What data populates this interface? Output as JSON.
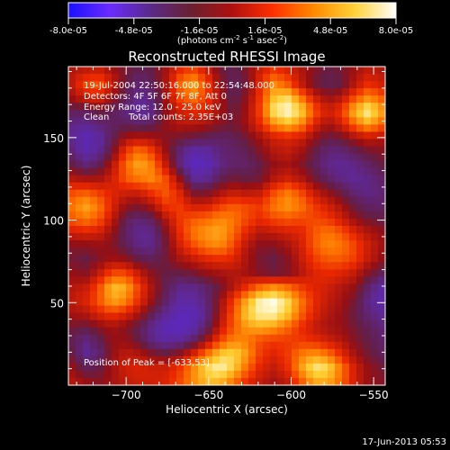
{
  "colorbar": {
    "ticks": [
      "-8.0e-05",
      "-4.8e-05",
      "-1.6e-05",
      "1.6e-05",
      "4.8e-05",
      "8.0e-05"
    ],
    "range": [
      -8e-05,
      8e-05
    ],
    "unit_main": "(photons cm",
    "unit_exp1": "-2",
    "unit_mid": " s",
    "unit_exp2": "-1",
    "unit_end": " asec",
    "unit_exp3": "-2",
    "unit_close": ")",
    "colors": [
      "#1a10ff",
      "#6a2bff",
      "#5a2a8a",
      "#6a2030",
      "#b01010",
      "#ff3000",
      "#ff8a00",
      "#ffd23a",
      "#ffffff"
    ]
  },
  "chart_data": {
    "type": "heatmap",
    "title": "Reconstructed RHESSI Image",
    "xlabel": "Heliocentric X (arcsec)",
    "ylabel": "Heliocentric Y (arcsec)",
    "xlim": [
      -735,
      -543
    ],
    "ylim": [
      0,
      193
    ],
    "x_ticks": [
      -700,
      -650,
      -600,
      -550
    ],
    "y_ticks": [
      50,
      100,
      150
    ],
    "color_scale": "RHESSI blue-purple-red-yellow-white",
    "annotations": {
      "time_range": "19-Jul-2004 22:50:16.000 to 22:54:48.000",
      "detectors": "Detectors: 4F 5F 6F 7F 8F, Att 0",
      "energy": "Energy Range: 12.0 - 25.0 keV",
      "clean_label": "Clean",
      "total_counts": "Total counts: 2.35E+03",
      "peak": "Position of Peak = [-633,53]"
    },
    "peak_position": [
      -633,
      53
    ],
    "grid_size": [
      24,
      24
    ],
    "intensity_grid": [
      [
        0.1,
        0.15,
        0.2,
        0.05,
        -0.1,
        -0.2,
        -0.15,
        0.05,
        0.3,
        0.4,
        0.2,
        -0.1,
        -0.2,
        -0.05,
        0.2,
        0.35,
        0.25,
        0.1,
        -0.05,
        -0.15,
        -0.1,
        0.05,
        0.15,
        0.1
      ],
      [
        0.15,
        0.4,
        0.45,
        0.2,
        -0.15,
        -0.3,
        -0.2,
        0.1,
        0.5,
        0.7,
        0.4,
        0.0,
        -0.25,
        -0.1,
        0.3,
        0.6,
        0.45,
        0.15,
        -0.1,
        -0.2,
        -0.15,
        0.1,
        0.3,
        0.2
      ],
      [
        0.05,
        0.2,
        0.25,
        0.0,
        -0.2,
        -0.4,
        -0.3,
        0.05,
        0.4,
        0.55,
        0.35,
        0.05,
        -0.2,
        0.0,
        0.35,
        0.75,
        0.85,
        0.55,
        0.2,
        0.0,
        0.1,
        0.4,
        0.6,
        0.45
      ],
      [
        -0.2,
        -0.2,
        -0.1,
        -0.2,
        -0.35,
        -0.45,
        -0.35,
        0.0,
        0.2,
        0.3,
        0.25,
        0.05,
        -0.15,
        0.05,
        0.4,
        0.9,
        1.0,
        0.85,
        0.45,
        0.2,
        0.35,
        0.75,
        0.95,
        0.7
      ],
      [
        -0.35,
        -0.4,
        -0.3,
        -0.25,
        -0.2,
        -0.25,
        -0.2,
        0.0,
        0.1,
        0.1,
        0.05,
        -0.05,
        -0.1,
        0.05,
        0.3,
        0.6,
        0.75,
        0.6,
        0.25,
        0.05,
        0.2,
        0.5,
        0.7,
        0.5
      ],
      [
        -0.4,
        -0.55,
        -0.45,
        -0.2,
        0.05,
        0.1,
        0.05,
        -0.05,
        -0.1,
        -0.15,
        -0.2,
        -0.25,
        -0.2,
        -0.1,
        0.05,
        0.2,
        0.25,
        0.2,
        0.0,
        -0.15,
        -0.1,
        0.05,
        0.15,
        0.1
      ],
      [
        -0.3,
        -0.5,
        -0.4,
        -0.1,
        0.35,
        0.55,
        0.35,
        0.0,
        -0.3,
        -0.5,
        -0.45,
        -0.3,
        -0.25,
        -0.2,
        -0.05,
        0.1,
        0.15,
        0.05,
        -0.15,
        -0.3,
        -0.3,
        -0.2,
        -0.1,
        -0.05
      ],
      [
        -0.15,
        -0.3,
        -0.2,
        0.1,
        0.5,
        0.7,
        0.55,
        0.15,
        -0.3,
        -0.6,
        -0.55,
        -0.35,
        -0.25,
        -0.25,
        -0.15,
        0.0,
        0.05,
        -0.05,
        -0.2,
        -0.35,
        -0.4,
        -0.35,
        -0.25,
        -0.15
      ],
      [
        0.1,
        0.05,
        0.05,
        0.2,
        0.45,
        0.55,
        0.6,
        0.4,
        0.0,
        -0.4,
        -0.4,
        -0.2,
        -0.1,
        -0.15,
        -0.1,
        0.1,
        0.2,
        0.1,
        -0.1,
        -0.25,
        -0.35,
        -0.4,
        -0.35,
        -0.25
      ],
      [
        0.4,
        0.45,
        0.35,
        0.25,
        0.2,
        0.2,
        0.35,
        0.45,
        0.25,
        -0.1,
        -0.1,
        0.05,
        0.15,
        0.1,
        0.15,
        0.4,
        0.55,
        0.4,
        0.15,
        0.0,
        -0.15,
        -0.3,
        -0.35,
        -0.3
      ],
      [
        0.55,
        0.7,
        0.55,
        0.25,
        0.0,
        -0.05,
        0.1,
        0.35,
        0.35,
        0.2,
        0.2,
        0.35,
        0.45,
        0.4,
        0.35,
        0.55,
        0.65,
        0.55,
        0.35,
        0.2,
        0.05,
        -0.15,
        -0.25,
        -0.25
      ],
      [
        0.45,
        0.55,
        0.45,
        0.15,
        -0.2,
        -0.3,
        -0.2,
        0.1,
        0.35,
        0.45,
        0.5,
        0.6,
        0.55,
        0.4,
        0.3,
        0.4,
        0.45,
        0.4,
        0.4,
        0.35,
        0.2,
        0.0,
        -0.1,
        -0.15
      ],
      [
        0.2,
        0.25,
        0.2,
        0.0,
        -0.25,
        -0.4,
        -0.35,
        -0.05,
        0.3,
        0.55,
        0.65,
        0.7,
        0.5,
        0.25,
        0.1,
        0.15,
        0.2,
        0.25,
        0.45,
        0.55,
        0.45,
        0.25,
        0.1,
        0.0
      ],
      [
        -0.05,
        -0.05,
        0.0,
        -0.05,
        -0.2,
        -0.35,
        -0.35,
        -0.1,
        0.2,
        0.4,
        0.55,
        0.6,
        0.4,
        0.1,
        -0.05,
        -0.05,
        0.05,
        0.2,
        0.45,
        0.6,
        0.55,
        0.4,
        0.2,
        0.05
      ],
      [
        -0.1,
        -0.15,
        -0.05,
        0.05,
        0.0,
        -0.15,
        -0.2,
        -0.1,
        0.05,
        0.15,
        0.25,
        0.3,
        0.25,
        0.05,
        -0.1,
        -0.15,
        -0.05,
        0.15,
        0.35,
        0.45,
        0.45,
        0.35,
        0.15,
        0.0
      ],
      [
        0.0,
        -0.05,
        0.15,
        0.4,
        0.4,
        0.15,
        -0.05,
        -0.15,
        -0.15,
        -0.1,
        0.0,
        0.05,
        0.1,
        0.05,
        -0.05,
        -0.1,
        -0.05,
        0.1,
        0.25,
        0.3,
        0.25,
        0.15,
        -0.05,
        -0.2
      ],
      [
        0.1,
        0.15,
        0.4,
        0.75,
        0.7,
        0.35,
        0.05,
        -0.2,
        -0.35,
        -0.35,
        -0.25,
        -0.1,
        0.1,
        0.3,
        0.5,
        0.6,
        0.5,
        0.35,
        0.25,
        0.2,
        0.1,
        0.0,
        -0.25,
        -0.45
      ],
      [
        0.15,
        0.25,
        0.45,
        0.7,
        0.6,
        0.3,
        0.0,
        -0.25,
        -0.45,
        -0.45,
        -0.3,
        0.0,
        0.35,
        0.7,
        0.95,
        1.0,
        0.85,
        0.55,
        0.3,
        0.15,
        0.05,
        -0.1,
        -0.35,
        -0.5
      ],
      [
        0.05,
        0.1,
        0.25,
        0.35,
        0.25,
        0.05,
        -0.2,
        -0.4,
        -0.55,
        -0.55,
        -0.35,
        0.05,
        0.45,
        0.8,
        0.95,
        0.95,
        0.8,
        0.5,
        0.25,
        0.1,
        0.0,
        -0.15,
        -0.3,
        -0.4
      ],
      [
        -0.1,
        -0.15,
        -0.05,
        0.05,
        -0.05,
        -0.2,
        -0.4,
        -0.55,
        -0.6,
        -0.5,
        -0.25,
        0.15,
        0.45,
        0.65,
        0.7,
        0.65,
        0.5,
        0.3,
        0.15,
        0.05,
        0.0,
        -0.1,
        -0.2,
        -0.3
      ],
      [
        -0.2,
        -0.35,
        -0.2,
        0.0,
        0.0,
        -0.15,
        -0.35,
        -0.45,
        -0.4,
        -0.25,
        0.05,
        0.4,
        0.6,
        0.55,
        0.4,
        0.35,
        0.35,
        0.35,
        0.3,
        0.2,
        0.1,
        -0.05,
        -0.15,
        -0.25
      ],
      [
        -0.15,
        -0.4,
        -0.3,
        0.0,
        0.15,
        0.1,
        -0.05,
        -0.1,
        0.0,
        0.25,
        0.55,
        0.8,
        0.85,
        0.65,
        0.35,
        0.25,
        0.35,
        0.55,
        0.65,
        0.55,
        0.3,
        0.05,
        -0.1,
        -0.2
      ],
      [
        0.0,
        -0.2,
        -0.15,
        0.05,
        0.2,
        0.25,
        0.2,
        0.2,
        0.35,
        0.6,
        0.85,
        0.95,
        0.8,
        0.5,
        0.25,
        0.15,
        0.3,
        0.65,
        0.9,
        0.85,
        0.55,
        0.2,
        0.0,
        -0.1
      ],
      [
        0.1,
        0.0,
        -0.05,
        0.05,
        0.15,
        0.2,
        0.2,
        0.25,
        0.4,
        0.6,
        0.75,
        0.75,
        0.55,
        0.3,
        0.15,
        0.05,
        0.15,
        0.45,
        0.7,
        0.7,
        0.5,
        0.2,
        0.0,
        -0.05
      ]
    ]
  },
  "footer": {
    "date": "17-Jun-2013 05:53"
  }
}
